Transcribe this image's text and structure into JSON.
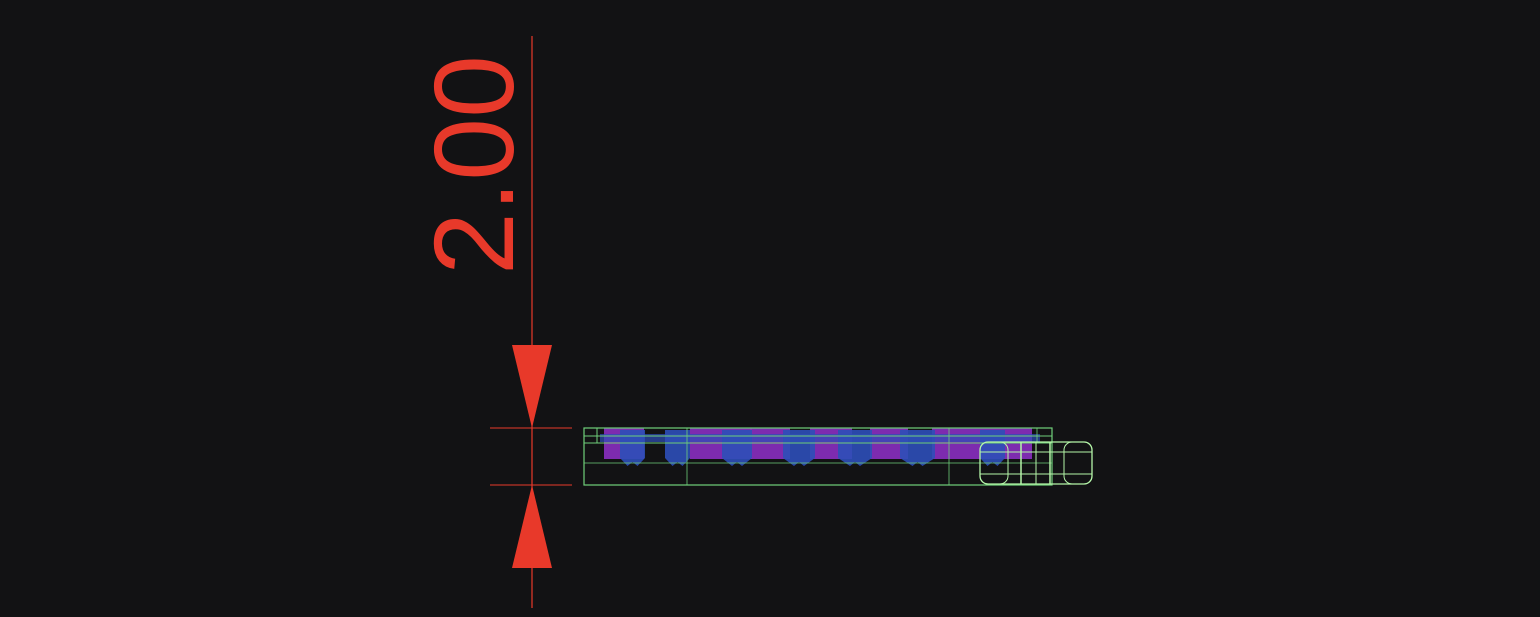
{
  "drawing": {
    "dimension_value": "2.00",
    "colors": {
      "background": "#121214",
      "dimension": "#e8392a",
      "outline": "#6fcf7a",
      "highlight_outline": "#b4f5a8",
      "component_fill_purple": "#8a2fc0",
      "component_fill_blue": "#2d4fb8"
    }
  }
}
